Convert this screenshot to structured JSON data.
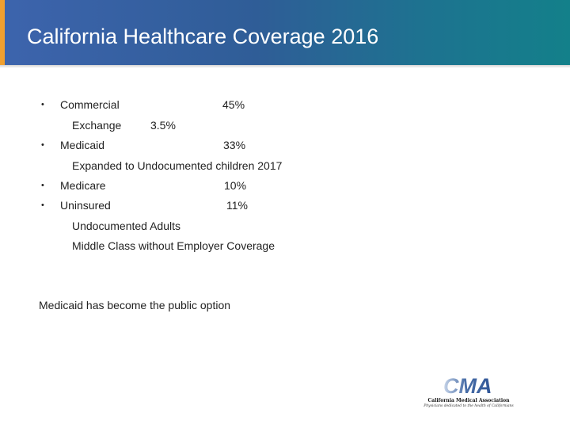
{
  "slide": {
    "title": "California Healthcare Coverage 2016",
    "rows": [
      {
        "label": "Commercial",
        "value": "45%"
      },
      {
        "label": "Exchange",
        "value": "3.5%"
      },
      {
        "label": "Medicaid",
        "value": "33%"
      },
      {
        "label": "Expanded to Undocumented children 2017"
      },
      {
        "label": "Medicare",
        "value": "10%"
      },
      {
        "label": "Uninsured",
        "value": "11%"
      },
      {
        "label": "Undocumented Adults"
      },
      {
        "label": "Middle Class without Employer Coverage"
      }
    ],
    "conclusion": "Medicaid has become the public option"
  },
  "logo": {
    "mark": "CMA",
    "name": "California Medical Association",
    "tagline": "Physicians dedicated to the health of Californians"
  },
  "colors": {
    "header_start": "#3d64ad",
    "header_end": "#13808a",
    "accent": "#f0a030",
    "logo_blue": "#4a6fa8"
  }
}
